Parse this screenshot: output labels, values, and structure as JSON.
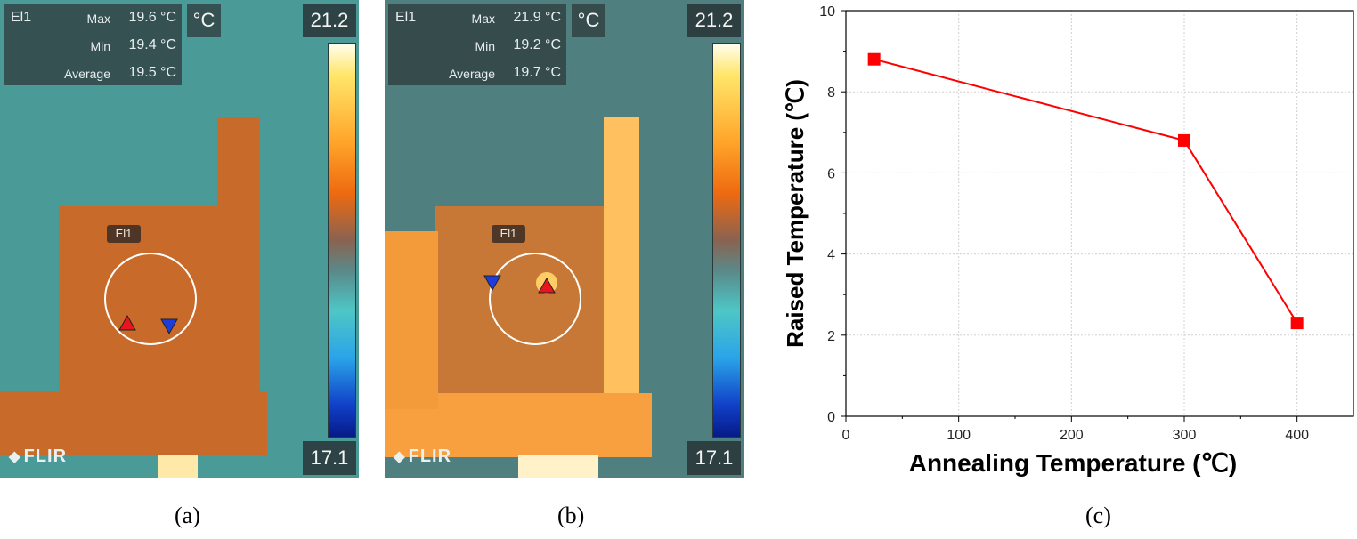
{
  "panels": [
    {
      "caption": "(a)",
      "readout": {
        "tag": "El1",
        "rows": [
          {
            "label": "Max",
            "value": "19.6 °C"
          },
          {
            "label": "Min",
            "value": "19.4 °C"
          },
          {
            "label": "Average",
            "value": "19.5 °C"
          }
        ]
      },
      "unit": "°C",
      "scale_max": "21.2",
      "scale_min": "17.1",
      "roi_label": "El1",
      "brand": "FLIR"
    },
    {
      "caption": "(b)",
      "readout": {
        "tag": "El1",
        "rows": [
          {
            "label": "Max",
            "value": "21.9 °C"
          },
          {
            "label": "Min",
            "value": "19.2 °C"
          },
          {
            "label": "Average",
            "value": "19.7 °C"
          }
        ]
      },
      "unit": "°C",
      "scale_max": "21.2",
      "scale_min": "17.1",
      "roi_label": "El1",
      "brand": "FLIR"
    }
  ],
  "chart_caption": "(c)",
  "chart_data": {
    "type": "line",
    "x": [
      25,
      300,
      400
    ],
    "y": [
      8.8,
      6.8,
      2.3
    ],
    "xlabel": "Annealing Temperature (℃)",
    "ylabel": "Raised Temperature (℃)",
    "xlim": [
      0,
      450
    ],
    "ylim": [
      0,
      10
    ],
    "xticks": [
      0,
      100,
      200,
      300,
      400
    ],
    "yticks": [
      0,
      2,
      4,
      6,
      8,
      10
    ],
    "grid": true,
    "series_color": "#ff0000",
    "marker": "square"
  }
}
